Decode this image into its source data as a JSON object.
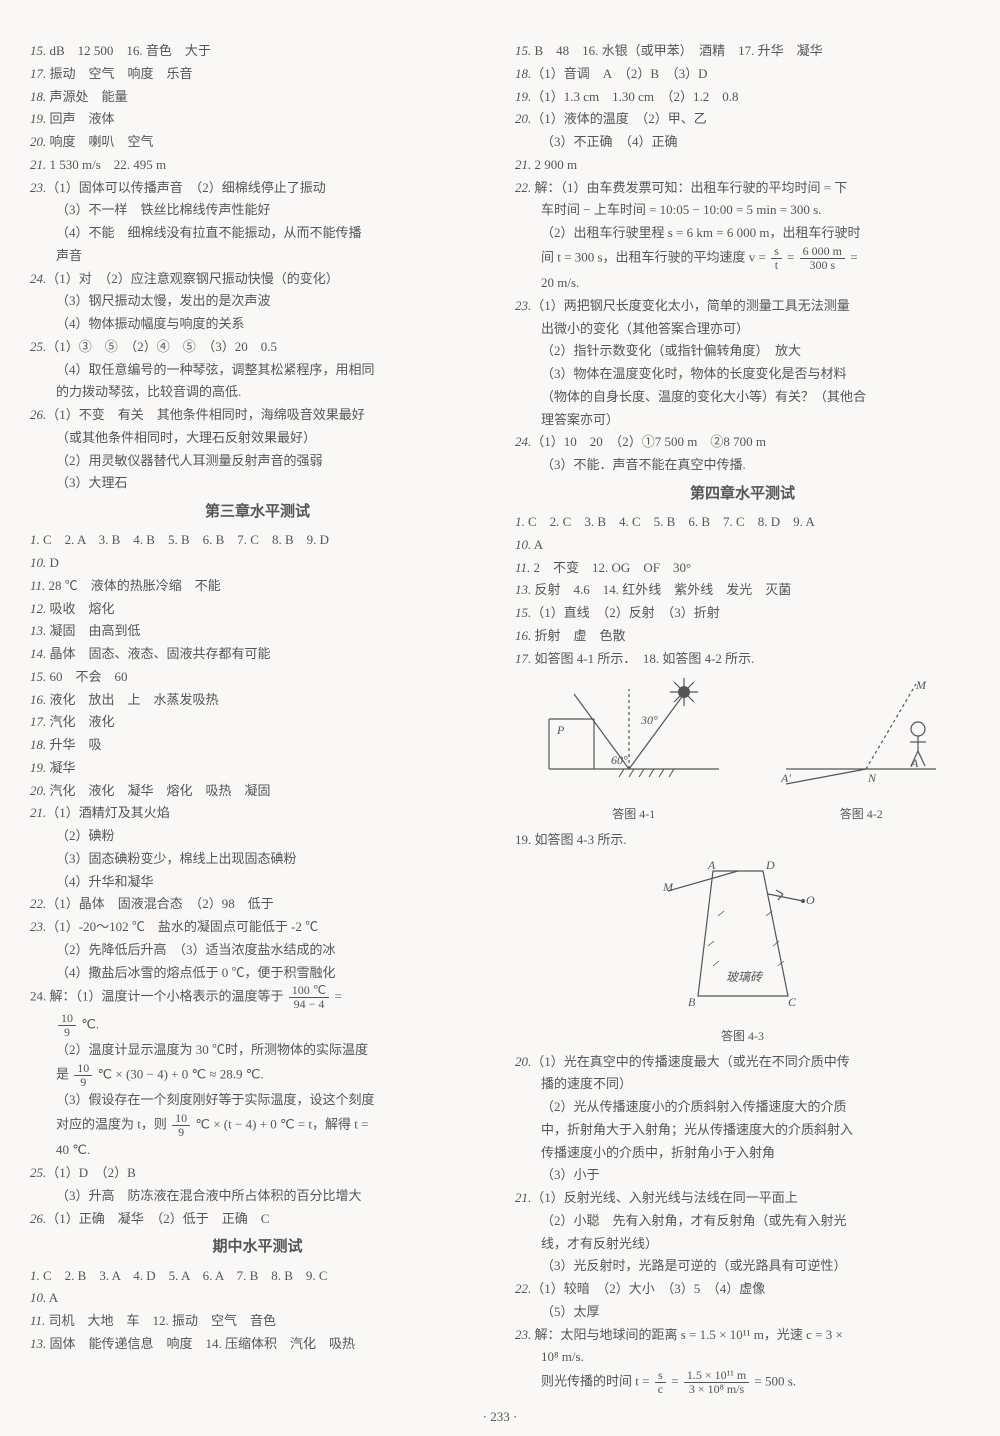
{
  "left": {
    "lines": [
      {
        "c": "numline",
        "t": "15. dB　12 500　16. 音色　大于"
      },
      {
        "c": "numline",
        "t": "17. 振动　空气　响度　乐音"
      },
      {
        "c": "numline",
        "t": "18. 声源处　能量"
      },
      {
        "c": "numline",
        "t": "19. 回声　液体"
      },
      {
        "c": "numline",
        "t": "20. 响度　喇叭　空气"
      },
      {
        "c": "numline",
        "t": "21. 1 530 m/s　22. 495 m"
      },
      {
        "c": "numline",
        "t": "23.（1）固体可以传播声音　（2）细棉线停止了振动"
      },
      {
        "c": "indent1",
        "t": "（3）不一样　铁丝比棉线传声性能好"
      },
      {
        "c": "indent1",
        "t": "（4）不能　细棉线没有拉直不能振动，从而不能传播"
      },
      {
        "c": "indent1",
        "t": "声音"
      },
      {
        "c": "numline",
        "t": "24.（1）对　（2）应注意观察钢尺振动快慢（的变化）"
      },
      {
        "c": "indent1",
        "t": "（3）钢尺振动太慢，发出的是次声波"
      },
      {
        "c": "indent1",
        "t": "（4）物体振动幅度与响度的关系"
      },
      {
        "c": "numline",
        "t": "25.（1）③　⑤　（2）④　⑤　（3）20　0.5"
      },
      {
        "c": "indent1",
        "t": "（4）取任意编号的一种琴弦，调整其松紧程序，用相同"
      },
      {
        "c": "indent1",
        "t": "的力拨动琴弦，比较音调的高低."
      },
      {
        "c": "numline",
        "t": "26.（1）不变　有关　其他条件相同时，海绵吸音效果最好"
      },
      {
        "c": "indent1",
        "t": "（或其他条件相同时，大理石反射效果最好）"
      },
      {
        "c": "indent1",
        "t": "（2）用灵敏仪器替代人耳测量反射声音的强弱"
      },
      {
        "c": "indent1",
        "t": "（3）大理石"
      }
    ],
    "section1": "第三章水平测试",
    "lines2": [
      {
        "c": "numline",
        "t": "1. C　2. A　3. B　4. B　5. B　6. B　7. C　8. B　9. D"
      },
      {
        "c": "numline",
        "t": "10. D"
      },
      {
        "c": "numline",
        "t": "11. 28 ℃　液体的热胀冷缩　不能"
      },
      {
        "c": "numline",
        "t": "12. 吸收　熔化"
      },
      {
        "c": "numline",
        "t": "13. 凝固　由高到低"
      },
      {
        "c": "numline",
        "t": "14. 晶体　固态、液态、固液共存都有可能"
      },
      {
        "c": "numline",
        "t": "15. 60　不会　60"
      },
      {
        "c": "numline",
        "t": "16. 液化　放出　上　水蒸发吸热"
      },
      {
        "c": "numline",
        "t": "17. 汽化　液化"
      },
      {
        "c": "numline",
        "t": "18. 升华　吸"
      },
      {
        "c": "numline",
        "t": "19. 凝华"
      },
      {
        "c": "numline",
        "t": "20. 汽化　液化　凝华　熔化　吸热　凝固"
      },
      {
        "c": "numline",
        "t": "21.（1）酒精灯及其火焰"
      },
      {
        "c": "indent1",
        "t": "（2）碘粉"
      },
      {
        "c": "indent1",
        "t": "（3）固态碘粉变少，棉线上出现固态碘粉"
      },
      {
        "c": "indent1",
        "t": "（4）升华和凝华"
      },
      {
        "c": "numline",
        "t": "22.（1）晶体　固液混合态　（2）98　低于"
      },
      {
        "c": "numline",
        "t": "23.（1）-20～102 ℃　盐水的凝固点可能低于 -2 ℃"
      },
      {
        "c": "indent1",
        "t": "（2）先降低后升高　（3）适当浓度盐水结成的冰"
      },
      {
        "c": "indent1",
        "t": "（4）撒盐后冰雪的熔点低于 0 ℃，便于积雪融化"
      }
    ],
    "q24a_pre": "24. 解：（1）温度计一个小格表示的温度等于",
    "q24a_frac": {
      "num": "100 ℃",
      "den": "94 − 4"
    },
    "q24a_post": " =",
    "q24b_frac": {
      "num": "10",
      "den": "9"
    },
    "q24b_post": "℃.",
    "q24c_pre": "（2）温度计显示温度为 30 ℃时，所测物体的实际温度",
    "q24d_pre": "是",
    "q24d_frac": {
      "num": "10",
      "den": "9"
    },
    "q24d_post": "℃ × (30 − 4) + 0 ℃ ≈ 28.9 ℃.",
    "q24e": "（3）假设存在一个刻度刚好等于实际温度，设这个刻度",
    "q24f_pre": "对应的温度为 t，则",
    "q24f_frac": {
      "num": "10",
      "den": "9"
    },
    "q24f_post": "℃ × (t − 4) + 0 ℃ = t，解得 t =",
    "q24g": "40 ℃.",
    "lines3": [
      {
        "c": "numline",
        "t": "25.（1）D　（2）B"
      },
      {
        "c": "indent1",
        "t": "（3）升高　防冻液在混合液中所占体积的百分比增大"
      },
      {
        "c": "numline",
        "t": "26.（1）正确　凝华　（2）低于　正确　C"
      }
    ],
    "section2": "期中水平测试",
    "lines4": [
      {
        "c": "numline",
        "t": "1. C　2. B　3. A　4. D　5. A　6. A　7. B　8. B　9. C"
      },
      {
        "c": "numline",
        "t": "10. A"
      },
      {
        "c": "numline",
        "t": "11. 司机　大地　车　12. 振动　空气　音色"
      },
      {
        "c": "numline",
        "t": "13. 固体　能传递信息　响度　14. 压缩体积　汽化　吸热"
      }
    ]
  },
  "right": {
    "lines": [
      {
        "c": "numline",
        "t": "15. B　48　16. 水银（或甲苯）　酒精　17. 升华　凝华"
      },
      {
        "c": "numline",
        "t": "18.（1）音调　A　（2）B　（3）D"
      },
      {
        "c": "numline",
        "t": "19.（1）1.3 cm　1.30 cm　（2）1.2　0.8"
      },
      {
        "c": "numline",
        "t": "20.（1）液体的温度　（2）甲、乙"
      },
      {
        "c": "indent1",
        "t": "（3）不正确　（4）正确"
      },
      {
        "c": "numline",
        "t": "21. 2 900 m"
      },
      {
        "c": "numline",
        "t": "22. 解：（1）由车费发票可知：出租车行驶的平均时间 = 下"
      },
      {
        "c": "indent1",
        "t": "车时间 − 上车时间 = 10:05 − 10:00 = 5 min = 300 s."
      },
      {
        "c": "indent1",
        "t": "（2）出租车行驶里程 s = 6 km = 6 000 m，出租车行驶时"
      }
    ],
    "q22_pre": "间 t = 300 s，出租车行驶的平均速度 v = ",
    "q22_f1": {
      "num": "s",
      "den": "t"
    },
    "q22_mid": " = ",
    "q22_f2": {
      "num": "6 000 m",
      "den": "300 s"
    },
    "q22_post": " =",
    "q22_end": "20 m/s.",
    "lines2": [
      {
        "c": "numline",
        "t": "23.（1）两把钢尺长度变化太小，简单的测量工具无法测量"
      },
      {
        "c": "indent1",
        "t": "出微小的变化（其他答案合理亦可）"
      },
      {
        "c": "indent1",
        "t": "（2）指针示数变化（或指针偏转角度）　放大"
      },
      {
        "c": "indent1",
        "t": "（3）物体在温度变化时，物体的长度变化是否与材料"
      },
      {
        "c": "indent1",
        "t": "（物体的自身长度、温度的变化大小等）有关？（其他合"
      },
      {
        "c": "indent1",
        "t": "理答案亦可）"
      },
      {
        "c": "numline",
        "t": "24.（1）10　20　（2）①7 500 m　②8 700 m"
      },
      {
        "c": "indent1",
        "t": "（3）不能．声音不能在真空中传播."
      }
    ],
    "section": "第四章水平测试",
    "lines3": [
      {
        "c": "numline",
        "t": "1. C　2. C　3. B　4. C　5. B　6. B　7. C　8. D　9. A"
      },
      {
        "c": "numline",
        "t": "10. A"
      },
      {
        "c": "numline",
        "t": "11. 2　不变　12. OG　OF　30°"
      },
      {
        "c": "numline",
        "t": "13. 反射　4.6　14. 红外线　紫外线　发光　灭菌"
      },
      {
        "c": "numline",
        "t": "15.（1）直线　（2）反射　（3）折射"
      },
      {
        "c": "numline",
        "t": "16. 折射　虚　色散"
      },
      {
        "c": "numline",
        "t": "17. 如答图 4-1 所示．　18. 如答图 4-2 所示."
      }
    ],
    "fig41_caption": "答图 4-1",
    "fig42_caption": "答图 4-2",
    "line_19": "19. 如答图 4-3 所示.",
    "fig43_caption": "答图 4-3",
    "fig43_label": "玻璃砖",
    "lines4": [
      {
        "c": "numline",
        "t": "20.（1）光在真空中的传播速度最大（或光在不同介质中传"
      },
      {
        "c": "indent1",
        "t": "播的速度不同）"
      },
      {
        "c": "indent1",
        "t": "（2）光从传播速度小的介质斜射入传播速度大的介质"
      },
      {
        "c": "indent1",
        "t": "中，折射角大于入射角；光从传播速度大的介质斜射入"
      },
      {
        "c": "indent1",
        "t": "传播速度小的介质中，折射角小于入射角"
      },
      {
        "c": "indent1",
        "t": "（3）小于"
      },
      {
        "c": "numline",
        "t": "21.（1）反射光线、入射光线与法线在同一平面上"
      },
      {
        "c": "indent1",
        "t": "（2）小聪　先有入射角，才有反射角（或先有入射光"
      },
      {
        "c": "indent1",
        "t": "线，才有反射光线）"
      },
      {
        "c": "indent1",
        "t": "（3）光反射时，光路是可逆的（或光路具有可逆性）"
      },
      {
        "c": "numline",
        "t": "22.（1）较暗　（2）大小　（3）5　（4）虚像"
      },
      {
        "c": "indent1",
        "t": "（5）太厚"
      },
      {
        "c": "numline",
        "t": "23. 解：太阳与地球间的距离 s = 1.5 × 10¹¹ m，光速 c = 3 ×"
      },
      {
        "c": "indent1",
        "t": "10⁸ m/s."
      }
    ],
    "q23_pre": "则光传播的时间 t = ",
    "q23_f1": {
      "num": "s",
      "den": "c"
    },
    "q23_mid": " = ",
    "q23_f2": {
      "num": "1.5 × 10¹¹ m",
      "den": "3 × 10⁸ m/s"
    },
    "q23_post": " = 500 s."
  },
  "page_number": "· 233 ·"
}
